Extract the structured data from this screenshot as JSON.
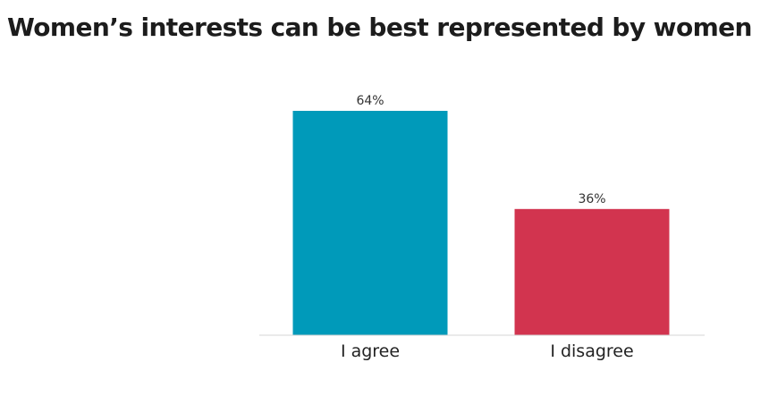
{
  "chart_data": {
    "type": "bar",
    "title": "Women’s interests can be best represented by women",
    "categories": [
      "I agree",
      "I disagree"
    ],
    "values": [
      64,
      36
    ],
    "value_labels": [
      "64%",
      "36%"
    ],
    "colors": [
      "#009aba",
      "#d2344f"
    ],
    "ylim": [
      0,
      64
    ],
    "grid": false,
    "legend": "none"
  }
}
